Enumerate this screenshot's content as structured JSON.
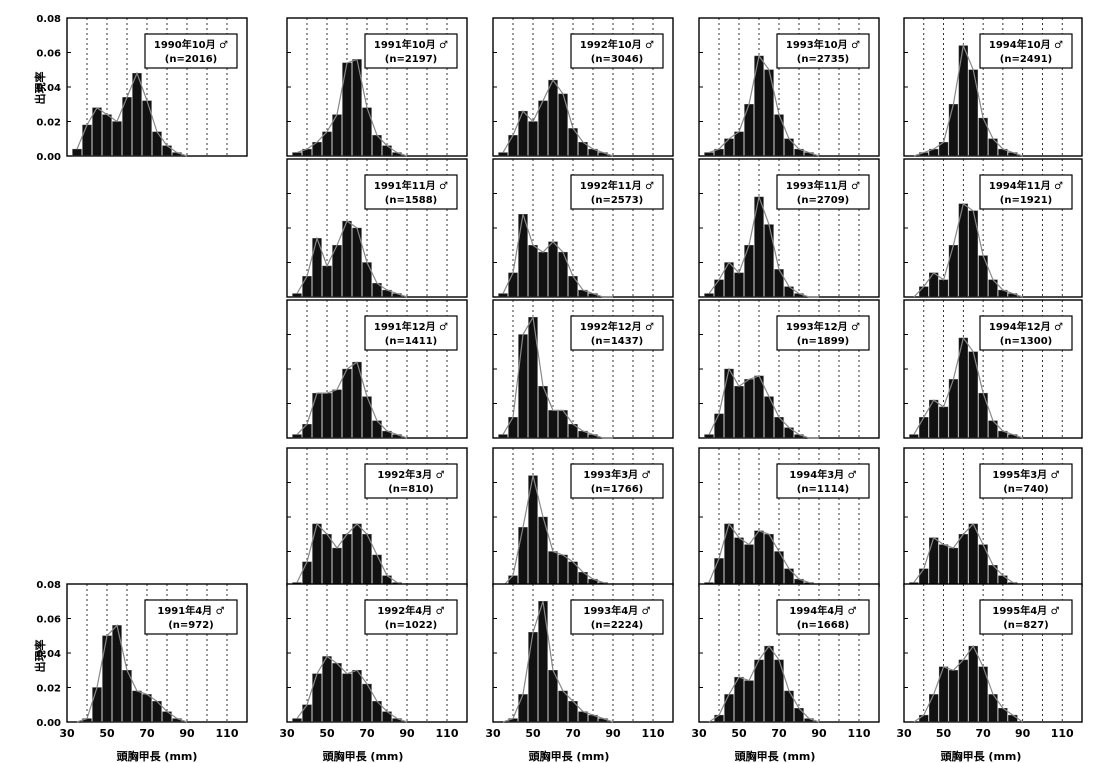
{
  "figure": {
    "y_axis_label": "出現率",
    "x_axis_label": "頭胸甲長 (mm)",
    "y_ticks": [
      "0.00",
      "0.02",
      "0.04",
      "0.06",
      "0.08"
    ],
    "x_ticks": [
      "30",
      "50",
      "70",
      "90",
      "110"
    ]
  },
  "chart_data": [
    {
      "type": "bar",
      "title": "1990年10月 ♂",
      "n_label": "(n=2016)",
      "xlim": [
        30,
        120
      ],
      "ylim": [
        0,
        0.08
      ],
      "x": [
        35,
        40,
        45,
        50,
        55,
        60,
        65,
        70,
        75,
        80,
        85,
        90
      ],
      "values": [
        0.004,
        0.018,
        0.028,
        0.024,
        0.02,
        0.034,
        0.048,
        0.032,
        0.014,
        0.006,
        0.002,
        0.0
      ]
    },
    {
      "type": "bar",
      "title": "1991年10月 ♂",
      "n_label": "(n=2197)",
      "xlim": [
        30,
        120
      ],
      "ylim": [
        0,
        0.08
      ],
      "x": [
        35,
        40,
        45,
        50,
        55,
        60,
        65,
        70,
        75,
        80,
        85,
        90
      ],
      "values": [
        0.002,
        0.004,
        0.008,
        0.014,
        0.024,
        0.054,
        0.056,
        0.028,
        0.012,
        0.006,
        0.002,
        0.0
      ]
    },
    {
      "type": "bar",
      "title": "1992年10月 ♂",
      "n_label": "(n=3046)",
      "xlim": [
        30,
        120
      ],
      "ylim": [
        0,
        0.08
      ],
      "x": [
        35,
        40,
        45,
        50,
        55,
        60,
        65,
        70,
        75,
        80,
        85,
        90
      ],
      "values": [
        0.002,
        0.012,
        0.026,
        0.02,
        0.032,
        0.044,
        0.036,
        0.016,
        0.008,
        0.004,
        0.002,
        0.0
      ]
    },
    {
      "type": "bar",
      "title": "1993年10月 ♂",
      "n_label": "(n=2735)",
      "xlim": [
        30,
        120
      ],
      "ylim": [
        0,
        0.08
      ],
      "x": [
        35,
        40,
        45,
        50,
        55,
        60,
        65,
        70,
        75,
        80,
        85,
        90
      ],
      "values": [
        0.002,
        0.004,
        0.01,
        0.014,
        0.03,
        0.058,
        0.05,
        0.024,
        0.01,
        0.004,
        0.002,
        0.0
      ]
    },
    {
      "type": "bar",
      "title": "1994年10月 ♂",
      "n_label": "(n=2491)",
      "xlim": [
        30,
        120
      ],
      "ylim": [
        0,
        0.08
      ],
      "x": [
        35,
        40,
        45,
        50,
        55,
        60,
        65,
        70,
        75,
        80,
        85,
        90
      ],
      "values": [
        0.0,
        0.002,
        0.004,
        0.008,
        0.03,
        0.064,
        0.05,
        0.022,
        0.01,
        0.004,
        0.002,
        0.0
      ]
    },
    {
      "type": "bar",
      "title": "1991年11月 ♂",
      "n_label": "(n=1588)",
      "xlim": [
        30,
        120
      ],
      "ylim": [
        0,
        0.08
      ],
      "x": [
        35,
        40,
        45,
        50,
        55,
        60,
        65,
        70,
        75,
        80,
        85,
        90
      ],
      "values": [
        0.002,
        0.012,
        0.034,
        0.018,
        0.03,
        0.044,
        0.04,
        0.02,
        0.008,
        0.004,
        0.002,
        0.0
      ]
    },
    {
      "type": "bar",
      "title": "1992年11月 ♂",
      "n_label": "(n=2573)",
      "xlim": [
        30,
        120
      ],
      "ylim": [
        0,
        0.08
      ],
      "x": [
        35,
        40,
        45,
        50,
        55,
        60,
        65,
        70,
        75,
        80,
        85,
        90
      ],
      "values": [
        0.002,
        0.014,
        0.048,
        0.03,
        0.026,
        0.032,
        0.026,
        0.012,
        0.004,
        0.002,
        0.0,
        0.0
      ]
    },
    {
      "type": "bar",
      "title": "1993年11月 ♂",
      "n_label": "(n=2709)",
      "xlim": [
        30,
        120
      ],
      "ylim": [
        0,
        0.08
      ],
      "x": [
        35,
        40,
        45,
        50,
        55,
        60,
        65,
        70,
        75,
        80,
        85,
        90
      ],
      "values": [
        0.002,
        0.01,
        0.02,
        0.014,
        0.03,
        0.058,
        0.042,
        0.016,
        0.006,
        0.002,
        0.0,
        0.0
      ]
    },
    {
      "type": "bar",
      "title": "1994年11月 ♂",
      "n_label": "(n=1921)",
      "xlim": [
        30,
        120
      ],
      "ylim": [
        0,
        0.08
      ],
      "x": [
        35,
        40,
        45,
        50,
        55,
        60,
        65,
        70,
        75,
        80,
        85,
        90
      ],
      "values": [
        0.0,
        0.006,
        0.014,
        0.01,
        0.03,
        0.054,
        0.05,
        0.024,
        0.01,
        0.004,
        0.002,
        0.0
      ]
    },
    {
      "type": "bar",
      "title": "1991年12月 ♂",
      "n_label": "(n=1411)",
      "xlim": [
        30,
        120
      ],
      "ylim": [
        0,
        0.08
      ],
      "x": [
        35,
        40,
        45,
        50,
        55,
        60,
        65,
        70,
        75,
        80,
        85,
        90
      ],
      "values": [
        0.002,
        0.008,
        0.026,
        0.026,
        0.028,
        0.04,
        0.044,
        0.024,
        0.01,
        0.004,
        0.002,
        0.0
      ]
    },
    {
      "type": "bar",
      "title": "1992年12月 ♂",
      "n_label": "(n=1437)",
      "xlim": [
        30,
        120
      ],
      "ylim": [
        0,
        0.08
      ],
      "x": [
        35,
        40,
        45,
        50,
        55,
        60,
        65,
        70,
        75,
        80,
        85,
        90
      ],
      "values": [
        0.002,
        0.012,
        0.06,
        0.07,
        0.03,
        0.016,
        0.016,
        0.008,
        0.004,
        0.002,
        0.0,
        0.0
      ]
    },
    {
      "type": "bar",
      "title": "1993年12月 ♂",
      "n_label": "(n=1899)",
      "xlim": [
        30,
        120
      ],
      "ylim": [
        0,
        0.08
      ],
      "x": [
        35,
        40,
        45,
        50,
        55,
        60,
        65,
        70,
        75,
        80,
        85,
        90
      ],
      "values": [
        0.002,
        0.014,
        0.04,
        0.03,
        0.034,
        0.036,
        0.024,
        0.012,
        0.006,
        0.002,
        0.0,
        0.0
      ]
    },
    {
      "type": "bar",
      "title": "1994年12月 ♂",
      "n_label": "(n=1300)",
      "xlim": [
        30,
        120
      ],
      "ylim": [
        0,
        0.08
      ],
      "x": [
        35,
        40,
        45,
        50,
        55,
        60,
        65,
        70,
        75,
        80,
        85,
        90
      ],
      "values": [
        0.002,
        0.012,
        0.022,
        0.018,
        0.034,
        0.058,
        0.05,
        0.026,
        0.01,
        0.004,
        0.002,
        0.0
      ]
    },
    {
      "type": "bar",
      "title": "1992年3月 ♂",
      "n_label": "(n=810)",
      "xlim": [
        30,
        120
      ],
      "ylim": [
        0,
        0.08
      ],
      "x": [
        35,
        40,
        45,
        50,
        55,
        60,
        65,
        70,
        75,
        80,
        85,
        90
      ],
      "values": [
        0.002,
        0.014,
        0.036,
        0.03,
        0.022,
        0.03,
        0.036,
        0.03,
        0.018,
        0.006,
        0.002,
        0.0
      ]
    },
    {
      "type": "bar",
      "title": "1993年3月 ♂",
      "n_label": "(n=1766)",
      "xlim": [
        30,
        120
      ],
      "ylim": [
        0,
        0.08
      ],
      "x": [
        35,
        40,
        45,
        50,
        55,
        60,
        65,
        70,
        75,
        80,
        85,
        90
      ],
      "values": [
        0.0,
        0.006,
        0.034,
        0.064,
        0.04,
        0.02,
        0.018,
        0.014,
        0.008,
        0.004,
        0.002,
        0.0
      ]
    },
    {
      "type": "bar",
      "title": "1994年3月 ♂",
      "n_label": "(n=1114)",
      "xlim": [
        30,
        120
      ],
      "ylim": [
        0,
        0.08
      ],
      "x": [
        35,
        40,
        45,
        50,
        55,
        60,
        65,
        70,
        75,
        80,
        85,
        90
      ],
      "values": [
        0.002,
        0.016,
        0.036,
        0.028,
        0.024,
        0.032,
        0.03,
        0.02,
        0.01,
        0.004,
        0.002,
        0.0
      ]
    },
    {
      "type": "bar",
      "title": "1995年3月 ♂",
      "n_label": "(n=740)",
      "xlim": [
        30,
        120
      ],
      "ylim": [
        0,
        0.08
      ],
      "x": [
        35,
        40,
        45,
        50,
        55,
        60,
        65,
        70,
        75,
        80,
        85,
        90
      ],
      "values": [
        0.002,
        0.01,
        0.028,
        0.024,
        0.022,
        0.03,
        0.036,
        0.024,
        0.012,
        0.006,
        0.002,
        0.0
      ]
    },
    {
      "type": "bar",
      "title": "1991年4月 ♂",
      "n_label": "(n=972)",
      "xlim": [
        30,
        120
      ],
      "ylim": [
        0,
        0.08
      ],
      "x": [
        35,
        40,
        45,
        50,
        55,
        60,
        65,
        70,
        75,
        80,
        85,
        90
      ],
      "values": [
        0.0,
        0.002,
        0.02,
        0.05,
        0.056,
        0.03,
        0.018,
        0.016,
        0.012,
        0.006,
        0.002,
        0.0
      ]
    },
    {
      "type": "bar",
      "title": "1992年4月 ♂",
      "n_label": "(n=1022)",
      "xlim": [
        30,
        120
      ],
      "ylim": [
        0,
        0.08
      ],
      "x": [
        35,
        40,
        45,
        50,
        55,
        60,
        65,
        70,
        75,
        80,
        85,
        90
      ],
      "values": [
        0.002,
        0.01,
        0.028,
        0.038,
        0.034,
        0.028,
        0.03,
        0.022,
        0.012,
        0.006,
        0.002,
        0.0
      ]
    },
    {
      "type": "bar",
      "title": "1993年4月 ♂",
      "n_label": "(n=2224)",
      "xlim": [
        30,
        120
      ],
      "ylim": [
        0,
        0.08
      ],
      "x": [
        35,
        40,
        45,
        50,
        55,
        60,
        65,
        70,
        75,
        80,
        85,
        90
      ],
      "values": [
        0.0,
        0.002,
        0.016,
        0.052,
        0.07,
        0.03,
        0.018,
        0.012,
        0.006,
        0.004,
        0.002,
        0.0
      ]
    },
    {
      "type": "bar",
      "title": "1994年4月 ♂",
      "n_label": "(n=1668)",
      "xlim": [
        30,
        120
      ],
      "ylim": [
        0,
        0.08
      ],
      "x": [
        35,
        40,
        45,
        50,
        55,
        60,
        65,
        70,
        75,
        80,
        85,
        90
      ],
      "values": [
        0.0,
        0.004,
        0.016,
        0.026,
        0.024,
        0.036,
        0.044,
        0.036,
        0.018,
        0.008,
        0.002,
        0.0
      ]
    },
    {
      "type": "bar",
      "title": "1995年4月 ♂",
      "n_label": "(n=827)",
      "xlim": [
        30,
        120
      ],
      "ylim": [
        0,
        0.08
      ],
      "x": [
        35,
        40,
        45,
        50,
        55,
        60,
        65,
        70,
        75,
        80,
        85,
        90
      ],
      "values": [
        0.0,
        0.004,
        0.016,
        0.032,
        0.03,
        0.036,
        0.044,
        0.032,
        0.016,
        0.008,
        0.004,
        0.0
      ]
    }
  ]
}
